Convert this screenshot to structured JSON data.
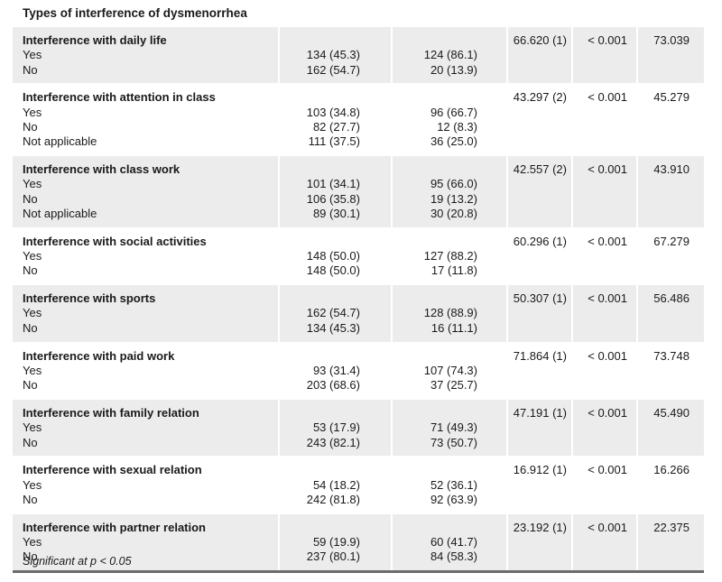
{
  "table": {
    "section_title": "Types of interference of dysmenorrhea",
    "rows": [
      {
        "header": "Interference with daily life",
        "chi": "66.620 (1)",
        "p": "< 0.001",
        "value": "73.039",
        "items": [
          {
            "label": "Yes",
            "a": "134 (45.3)",
            "b": "124 (86.1)"
          },
          {
            "label": "No",
            "a": "162 (54.7)",
            "b": "20 (13.9)"
          }
        ]
      },
      {
        "header": "Interference with attention in class",
        "chi": "43.297 (2)",
        "p": "< 0.001",
        "value": "45.279",
        "items": [
          {
            "label": "Yes",
            "a": "103 (34.8)",
            "b": "96 (66.7)"
          },
          {
            "label": "No",
            "a": "82 (27.7)",
            "b": "12 (8.3)"
          },
          {
            "label": "Not applicable",
            "a": "111 (37.5)",
            "b": "36 (25.0)"
          }
        ]
      },
      {
        "header": "Interference with class work",
        "chi": "42.557 (2)",
        "p": "< 0.001",
        "value": "43.910",
        "items": [
          {
            "label": "Yes",
            "a": "101 (34.1)",
            "b": "95 (66.0)"
          },
          {
            "label": "No",
            "a": "106 (35.8)",
            "b": "19 (13.2)"
          },
          {
            "label": "Not applicable",
            "a": "89 (30.1)",
            "b": "30 (20.8)"
          }
        ]
      },
      {
        "header": "Interference with social activities",
        "chi": "60.296 (1)",
        "p": "< 0.001",
        "value": "67.279",
        "items": [
          {
            "label": "Yes",
            "a": "148 (50.0)",
            "b": "127 (88.2)"
          },
          {
            "label": "No",
            "a": "148 (50.0)",
            "b": "17 (11.8)"
          }
        ]
      },
      {
        "header": "Interference with sports",
        "chi": "50.307 (1)",
        "p": "< 0.001",
        "value": "56.486",
        "items": [
          {
            "label": "Yes",
            "a": "162 (54.7)",
            "b": "128 (88.9)"
          },
          {
            "label": "No",
            "a": "134 (45.3)",
            "b": "16 (11.1)"
          }
        ]
      },
      {
        "header": "Interference with paid work",
        "chi": "71.864 (1)",
        "p": "< 0.001",
        "value": "73.748",
        "items": [
          {
            "label": "Yes",
            "a": "93 (31.4)",
            "b": "107 (74.3)"
          },
          {
            "label": "No",
            "a": "203 (68.6)",
            "b": "37 (25.7)"
          }
        ]
      },
      {
        "header": "Interference with family relation",
        "chi": "47.191 (1)",
        "p": "< 0.001",
        "value": "45.490",
        "items": [
          {
            "label": "Yes",
            "a": "53 (17.9)",
            "b": "71 (49.3)"
          },
          {
            "label": "No",
            "a": "243 (82.1)",
            "b": "73 (50.7)"
          }
        ]
      },
      {
        "header": "Interference with sexual relation",
        "chi": "16.912 (1)",
        "p": "< 0.001",
        "value": "16.266",
        "items": [
          {
            "label": "Yes",
            "a": "54 (18.2)",
            "b": "52 (36.1)"
          },
          {
            "label": "No",
            "a": "242 (81.8)",
            "b": "92 (63.9)"
          }
        ]
      },
      {
        "header": "Interference with partner relation",
        "chi": "23.192 (1)",
        "p": "< 0.001",
        "value": "22.375",
        "items": [
          {
            "label": "Yes",
            "a": "59 (19.9)",
            "b": "60 (41.7)"
          },
          {
            "label": "No",
            "a": "237 (80.1)",
            "b": "84 (58.3)"
          }
        ]
      }
    ],
    "footnote": "Significant at p < 0.05"
  }
}
